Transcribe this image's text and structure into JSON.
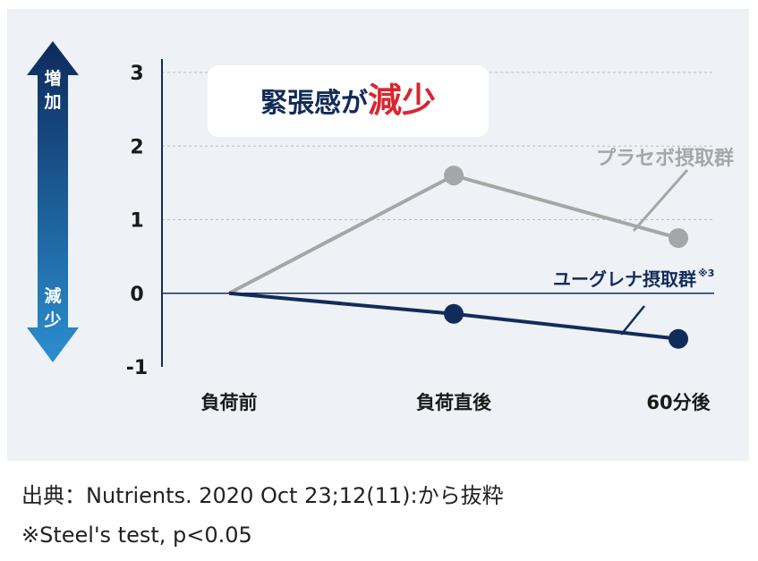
{
  "chart_data": {
    "type": "line",
    "categories": [
      "負荷前",
      "負荷直後",
      "60分後"
    ],
    "y_ticks": [
      "3",
      "2",
      "1",
      "0",
      "-1"
    ],
    "ylim": [
      -1,
      3
    ],
    "grid": "dashed horizontal",
    "series": [
      {
        "name": "プラセボ摂取群",
        "values": [
          0,
          1.6,
          0.75
        ],
        "color": "#a6a6a6"
      },
      {
        "name": "ユーグレナ摂取群",
        "name_note": "※3",
        "values": [
          0,
          -0.28,
          -0.62
        ],
        "color": "#122c5a"
      }
    ],
    "headline": {
      "prefix": "緊張感が",
      "emphasis": "減少"
    },
    "arrow_labels": {
      "up": "増加",
      "down": "減少"
    }
  },
  "captions": {
    "source": "出典：Nutrients. 2020 Oct 23;12(11):から抜粋",
    "test": "※Steel's test, p<0.05"
  },
  "colors": {
    "panel_bg": "#eef1f5",
    "emphasis_red": "#d9262f",
    "navy": "#122c5a",
    "arrow_top": "#0d2a5c",
    "arrow_bottom": "#2b8fd0"
  }
}
